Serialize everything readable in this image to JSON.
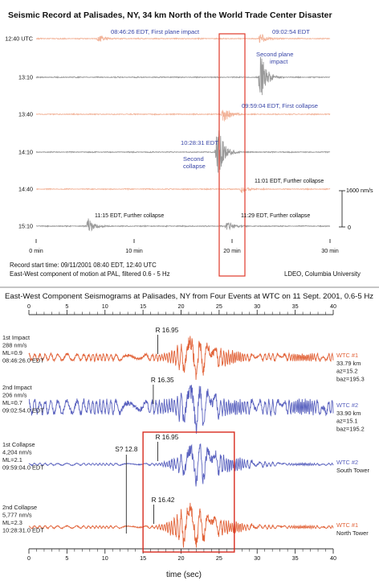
{
  "chart_data": [
    {
      "type": "line",
      "title": "Seismic Record at Palisades, NY, 34 km North of the World Trade Center Disaster",
      "xticks": [
        {
          "v": 0,
          "label": "0 min"
        },
        {
          "v": 10,
          "label": "10 min"
        },
        {
          "v": 20,
          "label": "20 min"
        },
        {
          "v": 30,
          "label": "30 min"
        }
      ],
      "xlim": [
        0,
        30
      ],
      "rows": [
        {
          "label": "12:40 UTC",
          "color": "#f2b49a"
        },
        {
          "label": "13:10",
          "color": "#9a9a9a"
        },
        {
          "label": "13:40",
          "color": "#f2b49a"
        },
        {
          "label": "14:10",
          "color": "#9a9a9a"
        },
        {
          "label": "14:40",
          "color": "#f2b49a"
        },
        {
          "label": "15:10",
          "color": "#9a9a9a"
        }
      ],
      "events": [
        {
          "row": 0,
          "minute": 6.4,
          "amp": 0.35
        },
        {
          "row": 0,
          "minute": 22.9,
          "amp": 0.5
        },
        {
          "row": 1,
          "minute": 22.9,
          "amp": 2.3
        },
        {
          "row": 2,
          "minute": 19.1,
          "amp": 0.9
        },
        {
          "row": 3,
          "minute": 18.5,
          "amp": 2.8
        },
        {
          "row": 4,
          "minute": 21.0,
          "amp": 0.35
        },
        {
          "row": 5,
          "minute": 5.3,
          "amp": 0.7
        },
        {
          "row": 5,
          "minute": 19.5,
          "amp": 0.45
        }
      ],
      "annotations": [
        {
          "text": "08:46:26 EDT, First plane impact",
          "color": "blue"
        },
        {
          "text": "09:02:54 EDT",
          "color": "blue"
        },
        {
          "text": "Second plane",
          "color": "blue"
        },
        {
          "text": "impact",
          "color": "blue"
        },
        {
          "text": "09:59:04 EDT, First collapse",
          "color": "blue"
        },
        {
          "text": "10:28:31 EDT",
          "color": "blue"
        },
        {
          "text": "Second",
          "color": "blue"
        },
        {
          "text": "collapse",
          "color": "blue"
        },
        {
          "text": "11:01 EDT, Further collapse",
          "color": "black"
        },
        {
          "text": "11:15 EDT, Further collapse",
          "color": "black"
        },
        {
          "text": "11:29 EDT, Further collapse",
          "color": "black"
        }
      ],
      "scale_bar": {
        "top_label": "1600 nm/s",
        "bottom_label": "0"
      },
      "footer": {
        "record_start": "Record start time: 09/11/2001 08:40 EDT, 12:40 UTC",
        "component": "East-West component of motion at PAL, filtered 0.6 - 5 Hz",
        "credit": "LDEO, Columbia University"
      }
    },
    {
      "type": "line",
      "title": "East-West Component Seismograms at Palisades, NY from Four Events at WTC on 11 Sept. 2001, 0.6-5 Hz",
      "xlabel": "time (sec)",
      "xlim": [
        0,
        40
      ],
      "xticks": [
        0,
        5,
        10,
        15,
        20,
        25,
        30,
        35,
        40
      ],
      "highlight_window": [
        15,
        27
      ],
      "series": [
        {
          "name": "1st Impact",
          "color": "#e2643a",
          "left_lines": [
            "1st Impact",
            "288 nm/s",
            "ML=0.9",
            "08:46:26.0 EDT"
          ],
          "right_lines": [
            "WTC #1",
            "33.79 km",
            "az=15.2",
            "baz=195.3"
          ],
          "pick": {
            "label": "R 16.95",
            "time": 16.95
          },
          "onset": 16.95,
          "peak": 21.3,
          "pre_noise": 0.16
        },
        {
          "name": "2nd Impact",
          "color": "#5a62bf",
          "left_lines": [
            "2nd Impact",
            "206 nm/s",
            "ML=0.7",
            "09:02:54.0 EDT"
          ],
          "right_lines": [
            "WTC #2",
            "33.90 km",
            "az=15.1",
            "baz=195.2"
          ],
          "pick": {
            "label": "R 16.35",
            "time": 16.35
          },
          "onset": 16.35,
          "peak": 21.7,
          "pre_noise": 0.3
        },
        {
          "name": "1st Collapse",
          "color": "#5a62bf",
          "left_lines": [
            "1st Collapse",
            "4,204 nm/s",
            "ML=2.1",
            "09:59:04.0 EDT"
          ],
          "right_lines": [
            "WTC #2",
            "South Tower"
          ],
          "pick": {
            "label": "R 16.95",
            "time": 16.95
          },
          "s_pick": {
            "label": "S? 12.8",
            "time": 12.8
          },
          "onset": 16.95,
          "peak": 22.0,
          "pre_noise": 0.05
        },
        {
          "name": "2nd Collapse",
          "color": "#e2643a",
          "left_lines": [
            "2nd Collapse",
            "5,777 nm/s",
            "ML=2.3",
            "10:28:31.0 EDT"
          ],
          "right_lines": [
            "WTC #1",
            "North Tower"
          ],
          "pick": {
            "label": "R 16.42",
            "time": 16.42
          },
          "onset": 16.42,
          "peak": 21.0,
          "pre_noise": 0.06
        }
      ]
    }
  ]
}
